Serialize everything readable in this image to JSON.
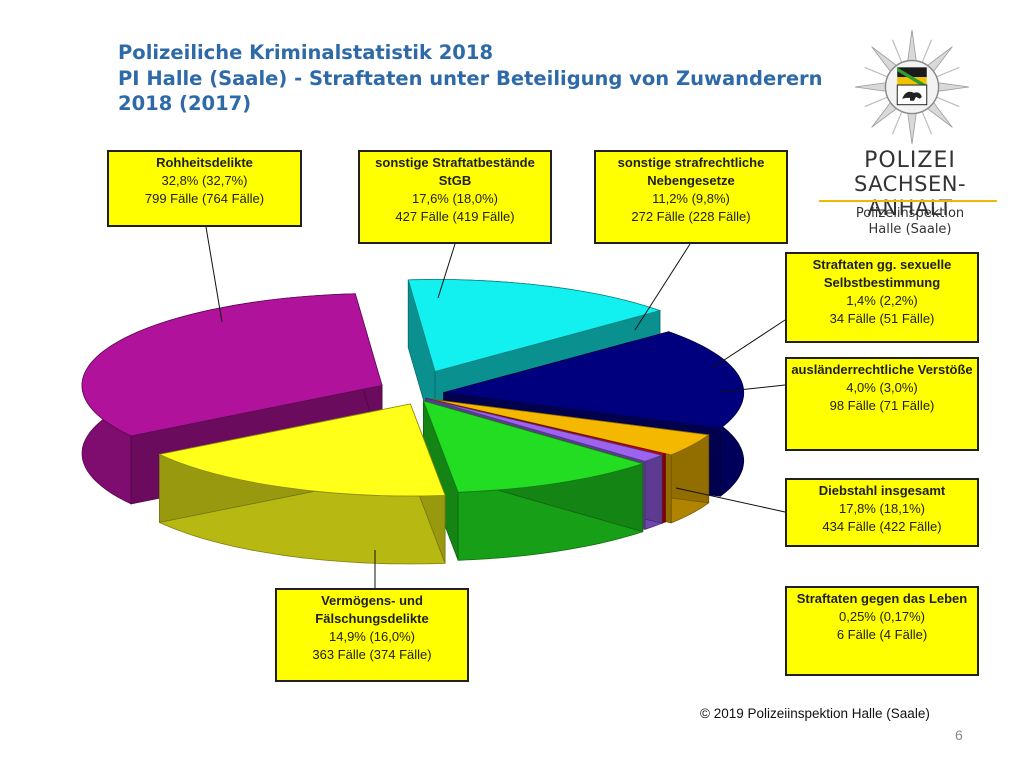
{
  "title": {
    "line1": "Polizeiliche Kriminalstatistik 2018",
    "line2": "PI Halle (Saale) - Straftaten unter Beteiligung von Zuwanderern",
    "line3": "2018 (2017)"
  },
  "logo": {
    "org_line1": "POLIZEI",
    "org_line2": "SACHSEN-ANHALT",
    "sub_line1": "Polizeiinspektion",
    "sub_line2": "Halle (Saale)"
  },
  "chart_data": {
    "type": "pie",
    "style": "3d-exploded",
    "title": "",
    "colors": {
      "rohheit": "#b0129b",
      "stgb": "#ffff1a",
      "nebengesetze": "#22dd22",
      "sexuell": "#9b63f0",
      "leben": "#e10000",
      "auslaender": "#f4b800",
      "diebstahl": "#00007f",
      "vermoegen": "#12f0f0"
    },
    "slices": [
      {
        "key": "rohheit",
        "name": "Rohheitsdelikte",
        "value": 32.8,
        "percent_text": "32,8% (32,7%)",
        "cases_text": "799 Fälle (764 Fälle)"
      },
      {
        "key": "stgb",
        "name": "sonstige Straftatbestände StGB",
        "value": 17.6,
        "percent_text": "17,6% (18,0%)",
        "cases_text": "427 Fälle (419 Fälle)"
      },
      {
        "key": "nebengesetze",
        "name": "sonstige strafrechtliche Nebengesetze",
        "value": 11.2,
        "percent_text": "11,2% (9,8%)",
        "cases_text": "272 Fälle (228 Fälle)"
      },
      {
        "key": "sexuell",
        "name": "Straftaten gg. sexuelle Selbstbestimmung",
        "value": 1.4,
        "percent_text": "1,4% (2,2%)",
        "cases_text": "34 Fälle (51 Fälle)"
      },
      {
        "key": "leben",
        "name": "Straftaten gegen das Leben",
        "value": 0.25,
        "percent_text": "0,25% (0,17%)",
        "cases_text": "6 Fälle (4 Fälle)"
      },
      {
        "key": "auslaender",
        "name": "ausländerrechtliche Verstöße",
        "value": 4.0,
        "percent_text": "4,0% (3,0%)",
        "cases_text": "98 Fälle (71 Fälle)"
      },
      {
        "key": "diebstahl",
        "name": "Diebstahl insgesamt",
        "value": 17.8,
        "percent_text": "17,8% (18,1%)",
        "cases_text": "434 Fälle (422 Fälle)"
      },
      {
        "key": "vermoegen",
        "name": "Vermögens- und Fälschungsdelikte",
        "value": 14.9,
        "percent_text": "14,9% (16,0%)",
        "cases_text": "363 Fälle (374 Fälle)"
      }
    ]
  },
  "footer": {
    "copyright": "© 2019 Polizeiinspektion Halle (Saale)",
    "page_number": "6"
  }
}
